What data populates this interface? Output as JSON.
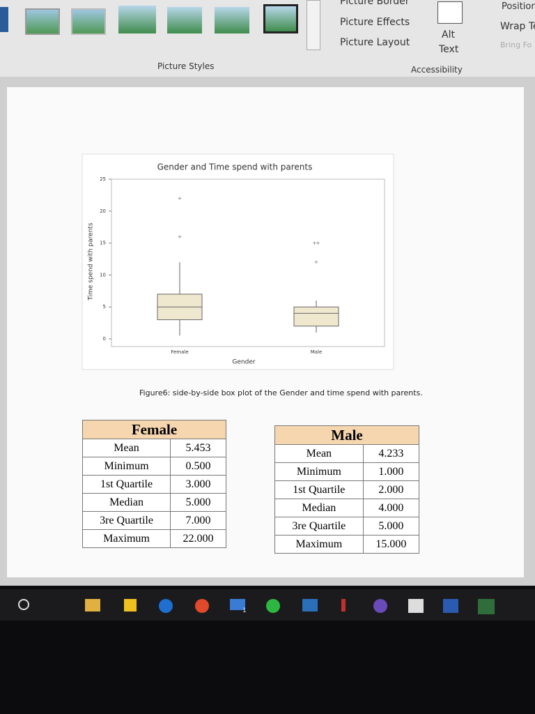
{
  "ribbon": {
    "picture_border": "Picture Border",
    "picture_effects": "Picture Effects",
    "picture_layout": "Picture Layout",
    "alt_text": [
      "Alt",
      "Text"
    ],
    "position": "Position",
    "wrap_text": "Wrap Te",
    "bring_forward": "Bring Fo",
    "picture_styles": "Picture Styles",
    "accessibility": "Accessibility"
  },
  "chart_data": {
    "type": "box",
    "title": "Gender and Time spend with parents",
    "x_label": "Gender",
    "y_label": "Time spend with parents",
    "categories": [
      "Female",
      "Male"
    ],
    "boxes": [
      {
        "whisker_low": 0.5,
        "q1": 3,
        "median": 5,
        "q3": 7,
        "whisker_high": 12,
        "outliers": [
          16,
          22
        ]
      },
      {
        "whisker_low": 1,
        "q1": 2,
        "median": 4,
        "q3": 5,
        "whisker_high": 6,
        "outliers": [
          12,
          15,
          15
        ]
      }
    ],
    "color": "#efe8cf",
    "ylim": [
      -1.2,
      25
    ],
    "yticks": [
      0,
      5,
      10,
      15,
      20,
      25
    ]
  },
  "caption": "Figure6: side-by-side box plot of the Gender and time spend with parents.",
  "tables": [
    {
      "title": "Female",
      "rows": [
        [
          "Mean",
          "5.453"
        ],
        [
          "Minimum",
          "0.500"
        ],
        [
          "1st Quartile",
          "3.000"
        ],
        [
          "Median",
          "5.000"
        ],
        [
          "3re Quartile",
          "7.000"
        ],
        [
          "Maximum",
          "22.000"
        ]
      ]
    },
    {
      "title": "Male",
      "rows": [
        [
          "Mean",
          "4.233"
        ],
        [
          "Minimum",
          "1.000"
        ],
        [
          "1st Quartile",
          "2.000"
        ],
        [
          "Median",
          "4.000"
        ],
        [
          "3re Quartile",
          "5.000"
        ],
        [
          "Maximum",
          "15.000"
        ]
      ]
    }
  ],
  "taskbar": {
    "mail_badge": "1"
  }
}
